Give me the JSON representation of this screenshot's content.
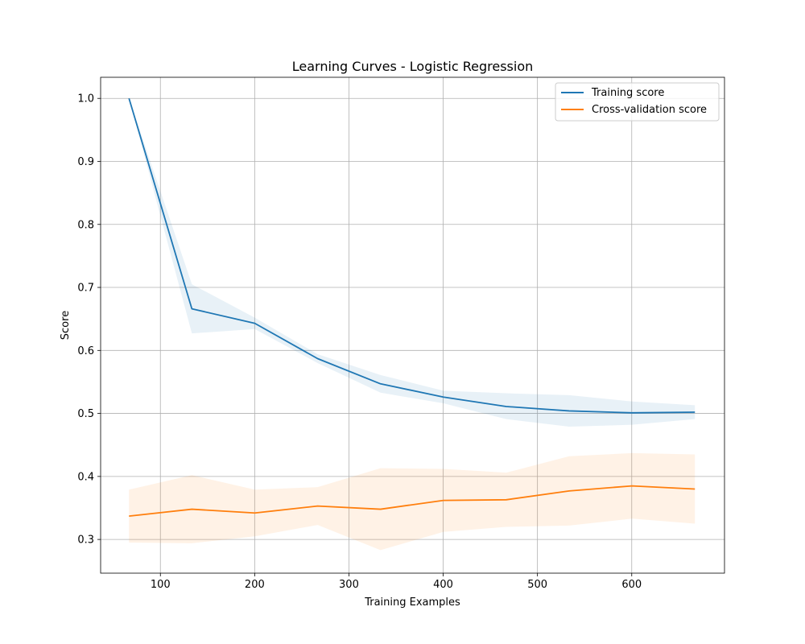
{
  "chart_data": {
    "type": "line",
    "title": "Learning Curves - Logistic Regression",
    "xlabel": "Training Examples",
    "ylabel": "Score",
    "xlim": [
      36.6,
      698.4
    ],
    "ylim": [
      0.2465,
      1.0335
    ],
    "xticks": [
      100,
      200,
      300,
      400,
      500,
      600
    ],
    "yticks": [
      0.3,
      0.4,
      0.5,
      0.6,
      0.7,
      0.8,
      0.9,
      1.0
    ],
    "ytick_labels": [
      "0.3",
      "0.4",
      "0.5",
      "0.6",
      "0.7",
      "0.8",
      "0.9",
      "1.0"
    ],
    "grid": true,
    "legend_position": "top-right",
    "x": [
      66.7,
      133.4,
      200.1,
      266.8,
      333.5,
      400.2,
      466.9,
      533.6,
      600.3,
      667
    ],
    "series": [
      {
        "name": "Training score",
        "color": "#1f77b4",
        "band_color": "#1f77b4",
        "values": [
          1.0,
          0.666,
          0.643,
          0.587,
          0.547,
          0.526,
          0.511,
          0.504,
          0.501,
          0.502
        ],
        "upper": [
          1.0,
          0.705,
          0.652,
          0.594,
          0.561,
          0.536,
          0.532,
          0.529,
          0.519,
          0.513
        ],
        "lower": [
          1.0,
          0.627,
          0.634,
          0.58,
          0.533,
          0.516,
          0.491,
          0.479,
          0.482,
          0.491
        ]
      },
      {
        "name": "Cross-validation score",
        "color": "#ff7f0e",
        "band_color": "#ff7f0e",
        "values": [
          0.337,
          0.348,
          0.342,
          0.353,
          0.348,
          0.362,
          0.363,
          0.377,
          0.385,
          0.38
        ],
        "upper": [
          0.379,
          0.402,
          0.379,
          0.383,
          0.413,
          0.412,
          0.406,
          0.432,
          0.437,
          0.435
        ],
        "lower": [
          0.295,
          0.294,
          0.305,
          0.323,
          0.283,
          0.312,
          0.32,
          0.322,
          0.333,
          0.325
        ]
      }
    ]
  }
}
